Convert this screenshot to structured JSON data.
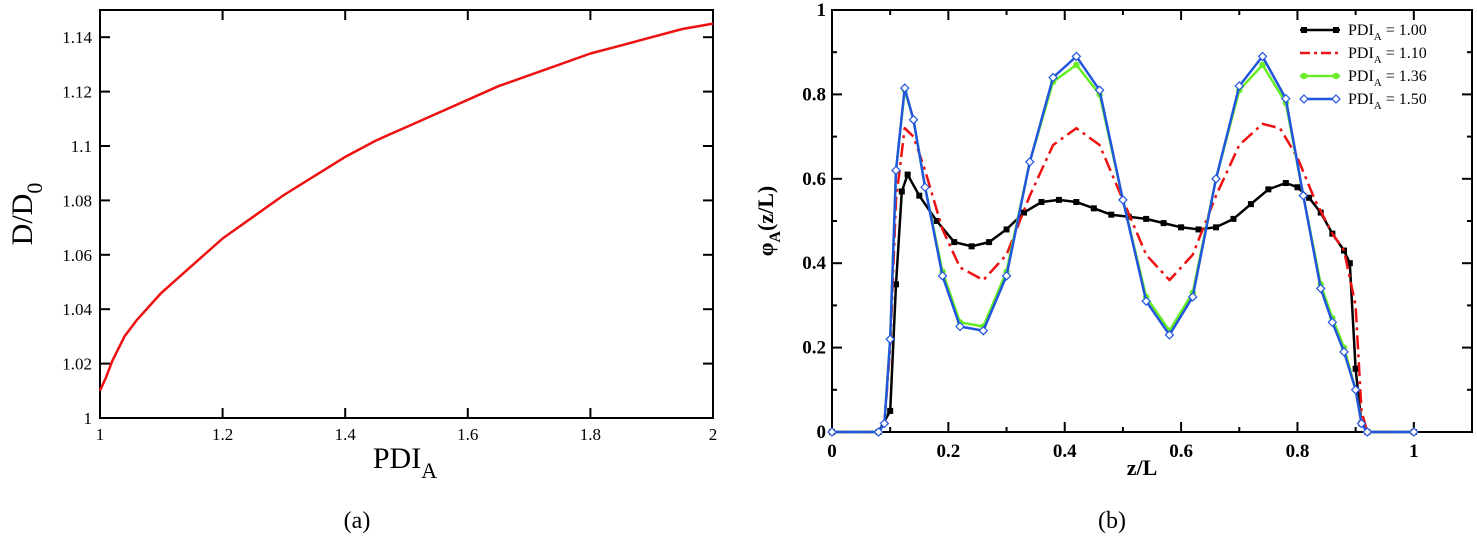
{
  "chart_data": [
    {
      "type": "line",
      "caption": "(a)",
      "xlabel": "PDI",
      "xlabel_sub": "A",
      "ylabel": "D/D",
      "ylabel_sub": "0",
      "xlim": [
        1,
        2
      ],
      "ylim": [
        1,
        1.15
      ],
      "xticks": [
        "1",
        "1.2",
        "1.4",
        "1.6",
        "1.8",
        "2"
      ],
      "yticks": [
        "1",
        "1.02",
        "1.04",
        "1.06",
        "1.08",
        "1.1",
        "1.12",
        "1.14"
      ],
      "grid": false,
      "series": [
        {
          "color": "#ee1111",
          "x": [
            1.0,
            1.01,
            1.02,
            1.04,
            1.06,
            1.08,
            1.1,
            1.15,
            1.2,
            1.25,
            1.3,
            1.35,
            1.4,
            1.45,
            1.5,
            1.55,
            1.6,
            1.65,
            1.7,
            1.75,
            1.8,
            1.85,
            1.9,
            1.95,
            2.0
          ],
          "y": [
            1.01,
            1.015,
            1.021,
            1.03,
            1.036,
            1.041,
            1.046,
            1.056,
            1.066,
            1.074,
            1.082,
            1.089,
            1.096,
            1.102,
            1.107,
            1.112,
            1.117,
            1.122,
            1.126,
            1.13,
            1.134,
            1.137,
            1.14,
            1.143,
            1.145
          ]
        }
      ]
    },
    {
      "type": "line",
      "caption": "(b)",
      "xlabel": "z/L",
      "ylabel": "φ",
      "ylabel_sub": "A",
      "ylabel_suffix": "(z/L)",
      "xlim": [
        0,
        1.1
      ],
      "ylim": [
        0,
        1
      ],
      "xticks": [
        "0",
        "0.2",
        "0.4",
        "0.6",
        "0.8",
        "1"
      ],
      "yticks": [
        "0",
        "0.2",
        "0.4",
        "0.6",
        "0.8",
        "1"
      ],
      "grid": false,
      "legend_position": "top-right",
      "series": [
        {
          "name": "PDI",
          "name_sub": "A",
          "name_suffix": " = 1.00",
          "color": "#000000",
          "style": "solid",
          "marker": "square",
          "x": [
            0,
            0.08,
            0.1,
            0.11,
            0.12,
            0.13,
            0.15,
            0.18,
            0.21,
            0.24,
            0.27,
            0.3,
            0.33,
            0.36,
            0.39,
            0.42,
            0.45,
            0.48,
            0.51,
            0.54,
            0.57,
            0.6,
            0.63,
            0.66,
            0.69,
            0.72,
            0.75,
            0.78,
            0.8,
            0.82,
            0.84,
            0.86,
            0.88,
            0.89,
            0.9,
            0.91,
            0.92,
            1.0
          ],
          "y": [
            0,
            0,
            0.05,
            0.35,
            0.57,
            0.61,
            0.56,
            0.5,
            0.45,
            0.44,
            0.45,
            0.48,
            0.52,
            0.545,
            0.55,
            0.545,
            0.53,
            0.515,
            0.51,
            0.505,
            0.495,
            0.485,
            0.48,
            0.485,
            0.505,
            0.54,
            0.575,
            0.59,
            0.58,
            0.555,
            0.52,
            0.47,
            0.43,
            0.4,
            0.15,
            0.02,
            0,
            0
          ]
        },
        {
          "name": "PDI",
          "name_sub": "A",
          "name_suffix": " = 1.10",
          "color": "#ee1111",
          "style": "dashdot",
          "marker": "none",
          "x": [
            0,
            0.08,
            0.09,
            0.1,
            0.11,
            0.125,
            0.14,
            0.16,
            0.19,
            0.22,
            0.26,
            0.3,
            0.34,
            0.38,
            0.42,
            0.46,
            0.5,
            0.54,
            0.58,
            0.62,
            0.66,
            0.7,
            0.74,
            0.77,
            0.8,
            0.83,
            0.86,
            0.88,
            0.9,
            0.91,
            0.92,
            1.0
          ],
          "y": [
            0,
            0,
            0.02,
            0.2,
            0.55,
            0.72,
            0.7,
            0.62,
            0.48,
            0.39,
            0.36,
            0.42,
            0.56,
            0.68,
            0.72,
            0.68,
            0.55,
            0.42,
            0.36,
            0.42,
            0.56,
            0.68,
            0.73,
            0.72,
            0.65,
            0.55,
            0.47,
            0.43,
            0.3,
            0.05,
            0,
            0
          ]
        },
        {
          "name": "PDI",
          "name_sub": "A",
          "name_suffix": " = 1.36",
          "color": "#66ee22",
          "style": "solid",
          "marker": "circle",
          "x": [
            0,
            0.08,
            0.09,
            0.1,
            0.11,
            0.125,
            0.14,
            0.16,
            0.19,
            0.22,
            0.26,
            0.3,
            0.34,
            0.38,
            0.42,
            0.46,
            0.5,
            0.54,
            0.58,
            0.62,
            0.66,
            0.7,
            0.74,
            0.78,
            0.81,
            0.84,
            0.86,
            0.88,
            0.9,
            0.91,
            0.92,
            1.0
          ],
          "y": [
            0,
            0,
            0.02,
            0.22,
            0.62,
            0.81,
            0.74,
            0.58,
            0.38,
            0.26,
            0.25,
            0.38,
            0.64,
            0.83,
            0.87,
            0.8,
            0.55,
            0.32,
            0.24,
            0.33,
            0.6,
            0.81,
            0.87,
            0.78,
            0.56,
            0.35,
            0.27,
            0.2,
            0.1,
            0.02,
            0,
            0
          ]
        },
        {
          "name": "PDI",
          "name_sub": "A",
          "name_suffix": " = 1.50",
          "color": "#2255dd",
          "style": "solid",
          "marker": "diamond",
          "x": [
            0,
            0.08,
            0.09,
            0.1,
            0.11,
            0.125,
            0.14,
            0.16,
            0.19,
            0.22,
            0.26,
            0.3,
            0.34,
            0.38,
            0.42,
            0.46,
            0.5,
            0.54,
            0.58,
            0.62,
            0.66,
            0.7,
            0.74,
            0.78,
            0.81,
            0.84,
            0.86,
            0.88,
            0.9,
            0.91,
            0.92,
            1.0
          ],
          "y": [
            0,
            0,
            0.02,
            0.22,
            0.62,
            0.815,
            0.74,
            0.58,
            0.37,
            0.25,
            0.24,
            0.37,
            0.64,
            0.84,
            0.89,
            0.81,
            0.55,
            0.31,
            0.23,
            0.32,
            0.6,
            0.82,
            0.89,
            0.79,
            0.56,
            0.34,
            0.26,
            0.19,
            0.1,
            0.02,
            0,
            0
          ]
        }
      ]
    }
  ]
}
